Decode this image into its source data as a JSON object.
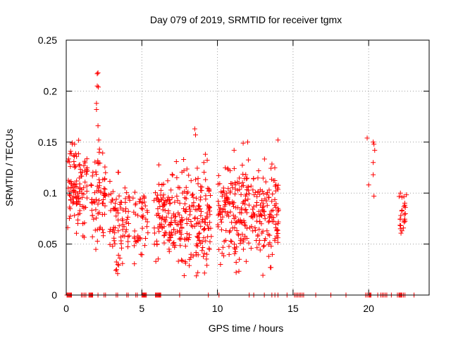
{
  "chart_data": {
    "type": "scatter",
    "title": "Day 079 of 2019, SRMTID for receiver tgmx",
    "xlabel": "GPS time / hours",
    "ylabel": "SRMTID / TECUs",
    "xlim": [
      0,
      24
    ],
    "ylim": [
      0,
      0.25
    ],
    "xticks": [
      0,
      5,
      10,
      15,
      20
    ],
    "yticks": [
      0,
      0.05,
      0.1,
      0.15,
      0.2,
      0.25
    ],
    "xtick_labels": [
      "0",
      "5",
      "10",
      "15",
      "20"
    ],
    "ytick_labels": [
      "0",
      "0.05",
      "0.1",
      "0.15",
      "0.2",
      "0.25"
    ],
    "grid": true,
    "marker": "+",
    "color": "#ff0000",
    "series": [
      {
        "name": "SRMTID",
        "clusters": [
          {
            "x_range": [
              0.1,
              1.4
            ],
            "y_mean": 0.105,
            "y_spread": 0.02,
            "count": 110
          },
          {
            "x_range": [
              1.6,
              2.6
            ],
            "y_mean": 0.09,
            "y_spread": 0.022,
            "count": 70
          },
          {
            "x_range": [
              2.8,
              4.2
            ],
            "y_mean": 0.07,
            "y_spread": 0.022,
            "count": 80
          },
          {
            "x_range": [
              4.4,
              5.4
            ],
            "y_mean": 0.078,
            "y_spread": 0.017,
            "count": 45
          },
          {
            "x_range": [
              5.8,
              7.6
            ],
            "y_mean": 0.08,
            "y_spread": 0.02,
            "count": 130
          },
          {
            "x_range": [
              7.6,
              9.6
            ],
            "y_mean": 0.072,
            "y_spread": 0.024,
            "count": 150
          },
          {
            "x_range": [
              10.0,
              11.5
            ],
            "y_mean": 0.08,
            "y_spread": 0.024,
            "count": 110
          },
          {
            "x_range": [
              11.5,
              12.8
            ],
            "y_mean": 0.085,
            "y_spread": 0.022,
            "count": 90
          },
          {
            "x_range": [
              12.8,
              14.1
            ],
            "y_mean": 0.08,
            "y_spread": 0.022,
            "count": 95
          },
          {
            "x_range": [
              22.0,
              22.5
            ],
            "y_mean": 0.078,
            "y_spread": 0.009,
            "count": 22
          }
        ],
        "notable_points": [
          [
            2.05,
            0.217
          ],
          [
            2.1,
            0.218
          ],
          [
            2.05,
            0.205
          ],
          [
            2.12,
            0.204
          ],
          [
            2.0,
            0.188
          ],
          [
            2.0,
            0.182
          ],
          [
            2.1,
            0.166
          ],
          [
            2.15,
            0.152
          ],
          [
            2.2,
            0.143
          ],
          [
            2.18,
            0.14
          ],
          [
            8.5,
            0.163
          ],
          [
            8.55,
            0.157
          ],
          [
            14.0,
            0.152
          ],
          [
            11.7,
            0.149
          ],
          [
            12.0,
            0.15
          ],
          [
            0.4,
            0.148
          ],
          [
            0.55,
            0.148
          ],
          [
            9.2,
            0.138
          ],
          [
            9.1,
            0.13
          ],
          [
            11.1,
            0.142
          ],
          [
            19.9,
            0.154
          ],
          [
            20.3,
            0.15
          ],
          [
            20.35,
            0.148
          ],
          [
            20.4,
            0.142
          ],
          [
            20.3,
            0.13
          ],
          [
            20.3,
            0.118
          ],
          [
            20.0,
            0.108
          ],
          [
            20.35,
            0.097
          ],
          [
            22.1,
            0.1
          ],
          [
            22.2,
            0.096
          ],
          [
            22.1,
            0.065
          ],
          [
            22.2,
            0.063
          ],
          [
            7.8,
            0.019
          ],
          [
            8.7,
            0.022
          ],
          [
            3.4,
            0.021
          ],
          [
            13.5,
            0.027
          ],
          [
            10.2,
            0.03
          ],
          [
            11.9,
            0.033
          ],
          [
            6.8,
            0.045
          ],
          [
            9.3,
            0.04
          ],
          [
            4.9,
            0.055
          ],
          [
            14.0,
            0.07
          ],
          [
            1.1,
            0.07
          ],
          [
            2.6,
            0.12
          ]
        ],
        "zero_points_x": [
          0.05,
          0.1,
          0.15,
          0.2,
          0.25,
          0.3,
          0.35,
          1.0,
          1.1,
          1.2,
          1.3,
          1.5,
          1.55,
          1.6,
          1.65,
          1.7,
          1.75,
          2.1,
          2.5,
          2.6,
          3.3,
          3.4,
          4.0,
          4.1,
          4.6,
          4.7,
          5.0,
          5.05,
          5.1,
          5.15,
          5.2,
          5.25,
          5.3,
          5.9,
          5.95,
          6.0,
          6.05,
          6.1,
          6.15,
          6.2,
          6.25,
          7.5,
          9.4,
          10.1,
          12.1,
          12.4,
          13.1,
          13.6,
          13.8,
          14.0,
          14.6,
          15.1,
          15.2,
          15.3,
          15.4,
          15.5,
          15.6,
          15.7,
          16.5,
          17.5,
          18.5,
          19.8,
          19.9,
          20.0,
          20.05,
          20.1,
          20.15,
          20.6,
          20.8,
          20.9,
          21.0,
          21.1,
          21.2,
          21.5,
          21.9,
          22.0,
          22.05,
          22.1,
          22.15,
          22.2,
          22.3,
          22.4,
          23.0
        ]
      }
    ]
  }
}
